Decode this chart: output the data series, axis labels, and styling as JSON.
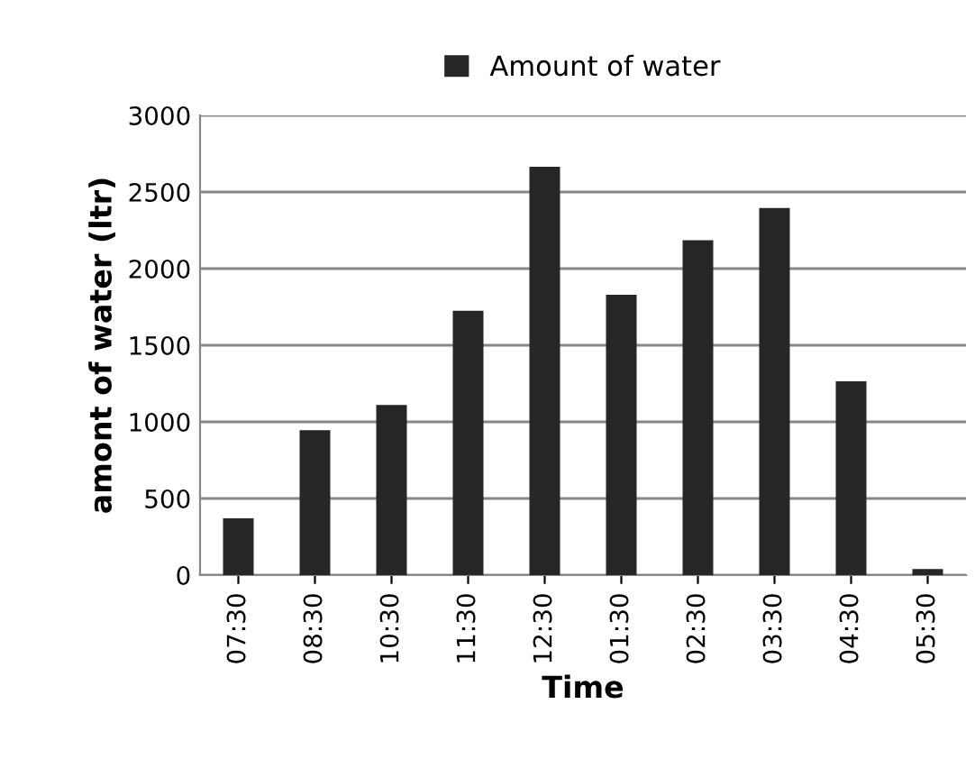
{
  "chart_data": {
    "type": "bar",
    "xlabel": "Time",
    "ylabel": "amont of water (ltr)",
    "categories": [
      "07:30",
      "08:30",
      "10:30",
      "11:30",
      "12:30",
      "01:30",
      "02:30",
      "03:30",
      "04:30",
      "05:30"
    ],
    "series": [
      {
        "name": "Amount of water",
        "color": "#262626",
        "values": [
          370,
          945,
          1110,
          1725,
          2665,
          1830,
          2185,
          2395,
          1265,
          40
        ]
      }
    ],
    "ylim": [
      0,
      3000
    ],
    "yticks": [
      0,
      500,
      1000,
      1500,
      2000,
      2500,
      3000
    ],
    "grid": "y",
    "legend": "top"
  }
}
